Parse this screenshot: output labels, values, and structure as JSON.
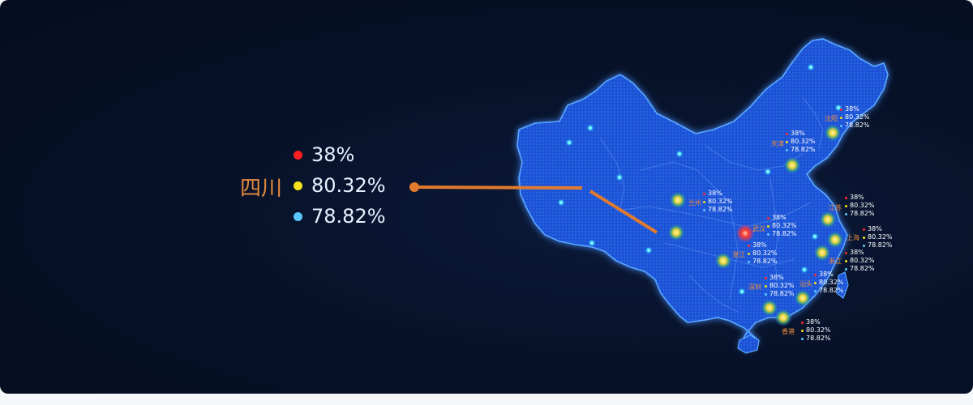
{
  "colors": {
    "background": "#07122a",
    "map_fill": "#1a4fd1",
    "map_edge": "#4fa3ff",
    "red": "#ff2a2a",
    "yellow": "#f6e11b",
    "blue": "#5ac8ff",
    "orange": "#e07a2e"
  },
  "callout": {
    "province": "四川",
    "values": [
      "38%",
      "80.32%",
      "78.82%"
    ]
  },
  "cities": [
    {
      "name": "沈阳",
      "values": [
        "38%",
        "80.32%",
        "78.82%"
      ]
    },
    {
      "name": "天津",
      "values": [
        "38%",
        "80.32%",
        "78.82%"
      ]
    },
    {
      "name": "兰州",
      "values": [
        "38%",
        "80.32%",
        "78.82%"
      ]
    },
    {
      "name": "武汉",
      "values": [
        "38%",
        "80.32%",
        "78.82%"
      ]
    },
    {
      "name": "江苏",
      "values": [
        "38%",
        "80.32%",
        "78.82%"
      ]
    },
    {
      "name": "上海",
      "values": [
        "38%",
        "80.32%",
        "78.82%"
      ]
    },
    {
      "name": "浙江",
      "values": [
        "38%",
        "80.32%",
        "78.82%"
      ]
    },
    {
      "name": "湛江",
      "values": [
        "38%",
        "80.32%",
        "78.82%"
      ]
    },
    {
      "name": "深圳",
      "values": [
        "38%",
        "80.32%",
        "78.82%"
      ]
    },
    {
      "name": "汕头",
      "values": [
        "38%",
        "80.32%",
        "78.82%"
      ]
    },
    {
      "name": "香港",
      "values": [
        "38%",
        "80.32%",
        "78.82%"
      ]
    }
  ]
}
